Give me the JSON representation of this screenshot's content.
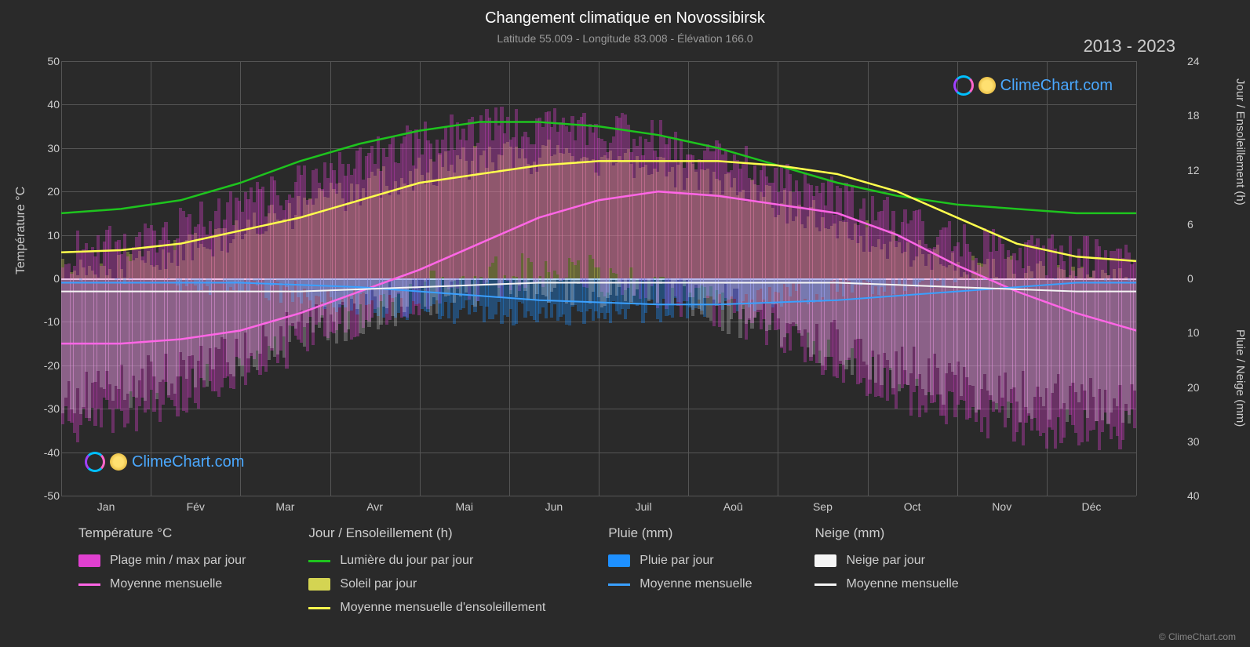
{
  "title": "Changement climatique en Novossibirsk",
  "subtitle": "Latitude 55.009 - Longitude 83.008 - Élévation 166.0",
  "year_range": "2013 - 2023",
  "logo_text": "ClimeChart.com",
  "copyright": "© ClimeChart.com",
  "axes": {
    "left_label": "Température °C",
    "right_label_top": "Jour / Ensoleillement (h)",
    "right_label_bot": "Pluie / Neige (mm)",
    "left_min": -50,
    "left_max": 50,
    "left_step": 10,
    "right_top_min": 0,
    "right_top_max": 24,
    "right_top_step": 6,
    "right_bot_min": 0,
    "right_bot_max": 40,
    "right_bot_step": 10,
    "months": [
      "Jan",
      "Fév",
      "Mar",
      "Avr",
      "Mai",
      "Jun",
      "Juil",
      "Aoû",
      "Sep",
      "Oct",
      "Nov",
      "Déc"
    ]
  },
  "colors": {
    "bg": "#2a2a2a",
    "grid": "#555555",
    "text": "#cccccc",
    "title": "#ffffff",
    "pink_fill": "#e040d0",
    "pink_line": "#ff66e6",
    "yellow_fill": "#d4d452",
    "yellow_line": "#ffff4d",
    "green_line": "#1ec41e",
    "blue_fill": "#1e90ff",
    "blue_line": "#3aa0ff",
    "white_fill": "#f5f5f5",
    "white_line": "#f5f5f5",
    "logo_blue": "#4aa8ff"
  },
  "lines": {
    "green_daylight": [
      15,
      16,
      18,
      22,
      27,
      31,
      34,
      36,
      36,
      35,
      33,
      30,
      26,
      22,
      19,
      17,
      16,
      15,
      15
    ],
    "yellow_sunshine": [
      6,
      6.5,
      8,
      11,
      14,
      18,
      22,
      24,
      26,
      27,
      27,
      27,
      26,
      24,
      20,
      14,
      8,
      5,
      4
    ],
    "pink_temp_avg": [
      -15,
      -15,
      -14,
      -12,
      -8,
      -3,
      2,
      8,
      14,
      18,
      20,
      19,
      17,
      15,
      10,
      3,
      -3,
      -8,
      -12
    ],
    "blue_rain_avg": [
      -1,
      -1,
      -1,
      -1,
      -1.5,
      -2,
      -3,
      -4,
      -5,
      -5.5,
      -6,
      -6,
      -5.5,
      -5,
      -4,
      -3,
      -2,
      -1,
      -1
    ],
    "white_snow_avg": [
      -3,
      -3,
      -3,
      -3,
      -3,
      -2.5,
      -2,
      -1.5,
      -1,
      -1,
      -1,
      -1,
      -1,
      -1,
      -1.5,
      -2,
      -2.5,
      -3,
      -3
    ]
  },
  "fontsize": {
    "title": 20,
    "subtitle": 14,
    "year": 22,
    "axis": 16,
    "tick": 14,
    "legend_title": 17,
    "legend_item": 16
  },
  "legend": {
    "cols": [
      {
        "title": "Température °C",
        "items": [
          {
            "type": "swatch",
            "color": "#e040d0",
            "label": "Plage min / max par jour"
          },
          {
            "type": "line",
            "color": "#ff66e6",
            "label": "Moyenne mensuelle"
          }
        ]
      },
      {
        "title": "Jour / Ensoleillement (h)",
        "items": [
          {
            "type": "line",
            "color": "#1ec41e",
            "label": "Lumière du jour par jour"
          },
          {
            "type": "swatch",
            "color": "#d4d452",
            "label": "Soleil par jour"
          },
          {
            "type": "line",
            "color": "#ffff4d",
            "label": "Moyenne mensuelle d'ensoleillement"
          }
        ]
      },
      {
        "title": "Pluie (mm)",
        "items": [
          {
            "type": "swatch",
            "color": "#1e90ff",
            "label": "Pluie par jour"
          },
          {
            "type": "line",
            "color": "#3aa0ff",
            "label": "Moyenne mensuelle"
          }
        ]
      },
      {
        "title": "Neige (mm)",
        "items": [
          {
            "type": "swatch",
            "color": "#f5f5f5",
            "label": "Neige par jour"
          },
          {
            "type": "line",
            "color": "#f5f5f5",
            "label": "Moyenne mensuelle"
          }
        ]
      }
    ]
  }
}
